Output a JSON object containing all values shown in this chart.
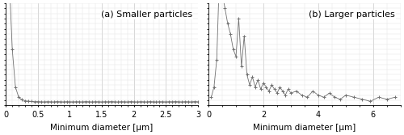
{
  "title_a": "(a) Smaller particles",
  "title_b": "(b) Larger particles",
  "xlabel": "Minimum diameter [μm]",
  "xlim_a": [
    0,
    3
  ],
  "xlim_b": [
    0,
    7
  ],
  "xticks_a": [
    0,
    0.5,
    1.0,
    1.5,
    2.0,
    2.5,
    3.0
  ],
  "xtick_labels_a": [
    "0",
    "0.5",
    "1",
    "1.5",
    "2",
    "2.5",
    "3"
  ],
  "xticks_b": [
    0,
    2,
    4,
    6
  ],
  "xtick_labels_b": [
    "0",
    "2",
    "4",
    "6"
  ],
  "ylim": [
    0,
    100
  ],
  "line_color": "#707070",
  "marker": "+",
  "markersize": 2.5,
  "markeredgewidth": 0.7,
  "linewidth": 0.6,
  "grid_major_color": "#c8c8c8",
  "grid_minor_color": "#e0e0e0",
  "title_fontsize": 8,
  "label_fontsize": 7.5,
  "tick_fontsize": 7,
  "x_minor_a": 0.1,
  "x_minor_b": 0.5,
  "x_a": [
    0.05,
    0.1,
    0.15,
    0.2,
    0.25,
    0.3,
    0.35,
    0.4,
    0.45,
    0.5,
    0.55,
    0.6,
    0.65,
    0.7,
    0.75,
    0.8,
    0.85,
    0.9,
    0.95,
    1.0,
    1.05,
    1.1,
    1.15,
    1.2,
    1.25,
    1.3,
    1.35,
    1.4,
    1.45,
    1.5,
    1.55,
    1.6,
    1.65,
    1.7,
    1.75,
    1.8,
    1.85,
    1.9,
    1.95,
    2.0,
    2.05,
    2.1,
    2.15,
    2.2,
    2.25,
    2.3,
    2.35,
    2.4,
    2.45,
    2.5,
    2.55,
    2.6,
    2.65,
    2.7,
    2.75,
    2.8,
    2.85,
    2.9,
    2.95,
    3.0
  ],
  "y_a": [
    130,
    55,
    18,
    8,
    5.5,
    4.5,
    4.2,
    3.9,
    3.7,
    3.8,
    3.6,
    3.5,
    3.7,
    3.6,
    3.5,
    3.8,
    3.6,
    3.5,
    3.7,
    3.6,
    3.5,
    3.7,
    3.6,
    3.5,
    3.8,
    3.6,
    3.5,
    3.7,
    3.6,
    3.5,
    3.7,
    3.6,
    3.8,
    3.6,
    3.5,
    3.7,
    3.6,
    3.5,
    3.8,
    3.6,
    3.5,
    3.7,
    3.6,
    3.5,
    3.8,
    3.6,
    3.5,
    3.7,
    3.6,
    3.5,
    3.7,
    3.6,
    3.8,
    3.6,
    3.5,
    3.7,
    3.6,
    3.5,
    3.8,
    3.6
  ],
  "x_b": [
    0.1,
    0.2,
    0.3,
    0.4,
    0.5,
    0.6,
    0.7,
    0.8,
    0.9,
    1.0,
    1.1,
    1.2,
    1.3,
    1.4,
    1.5,
    1.6,
    1.7,
    1.8,
    1.9,
    2.0,
    2.1,
    2.2,
    2.3,
    2.4,
    2.5,
    2.6,
    2.7,
    2.8,
    2.9,
    3.0,
    3.2,
    3.4,
    3.6,
    3.8,
    4.0,
    4.2,
    4.4,
    4.6,
    4.8,
    5.0,
    5.3,
    5.6,
    5.9,
    6.2,
    6.5,
    6.8
  ],
  "y_b": [
    8,
    18,
    45,
    130,
    110,
    95,
    80,
    70,
    55,
    48,
    85,
    38,
    68,
    30,
    20,
    28,
    18,
    25,
    16,
    22,
    18,
    14,
    20,
    16,
    12,
    18,
    14,
    10,
    16,
    12,
    14,
    10,
    8,
    14,
    10,
    8,
    12,
    8,
    6,
    10,
    8,
    6,
    4,
    8,
    6,
    8
  ]
}
